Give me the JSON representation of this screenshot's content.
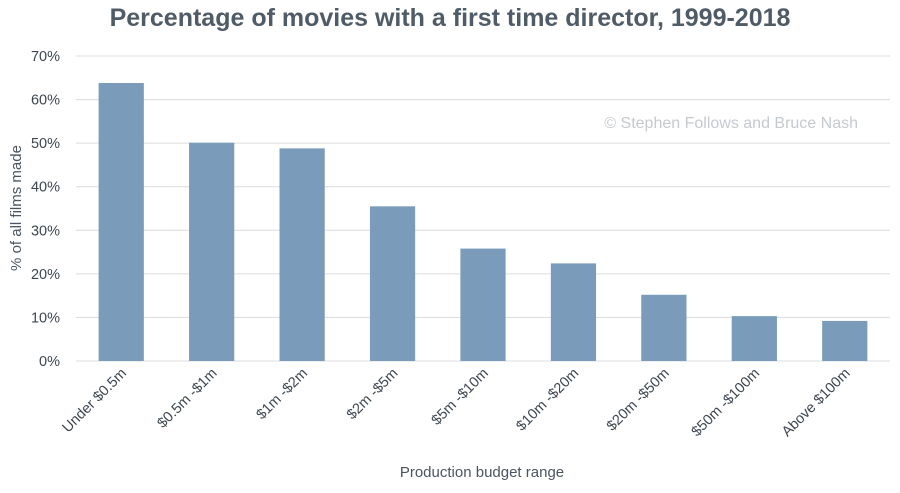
{
  "chart_data": {
    "type": "bar",
    "title": "Percentage of movies with a first time director, 1999-2018",
    "xlabel": "Production budget range",
    "ylabel": "% of all films made",
    "categories": [
      "Under $0.5m",
      "$0.5m -$1m",
      "$1m -$2m",
      "$2m -$5m",
      "$5m -$10m",
      "$10m -$20m",
      "$20m -$50m",
      "$50m -$100m",
      "Above $100m"
    ],
    "values": [
      63.8,
      50.1,
      48.8,
      35.5,
      25.8,
      22.4,
      15.2,
      10.3,
      9.2
    ],
    "ylim": [
      0,
      70
    ],
    "yticks": [
      0,
      10,
      20,
      30,
      40,
      50,
      60,
      70
    ],
    "ytick_labels": [
      "0%",
      "10%",
      "20%",
      "30%",
      "40%",
      "50%",
      "60%",
      "70%"
    ],
    "grid": true,
    "bar_color": "#7a9bb9",
    "annotation": "© Stephen Follows and Bruce Nash"
  }
}
